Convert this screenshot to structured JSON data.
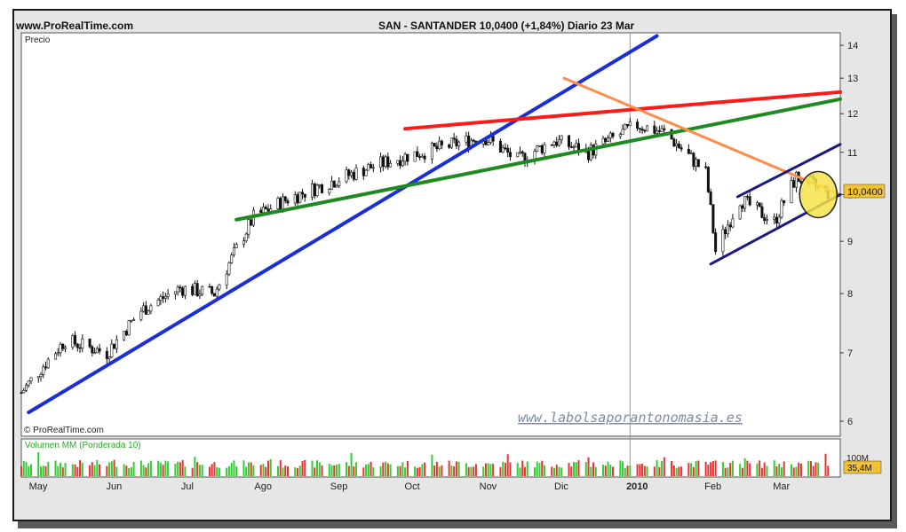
{
  "header": {
    "site": "www.ProRealTime.com",
    "quote": "SAN - SANTANDER    10,0400 (+1,84%)    Diario  23 Mar"
  },
  "price_panel": {
    "label": "Precio",
    "copyright": "© ProRealTime.com",
    "watermark": "www.labolsaporantonomasia.es",
    "last_price_label": "10,0400",
    "y_ticks": [
      "14",
      "13",
      "12",
      "11",
      "10",
      "9",
      "8",
      "7",
      "6"
    ]
  },
  "volume_panel": {
    "label": "Volumen MM (Ponderada 10)",
    "scale_label": "100M",
    "last_volume_label": "35,4M"
  },
  "x_labels": [
    "May",
    "Jun",
    "Jul",
    "Ago",
    "Sep",
    "Oct",
    "Nov",
    "Dic",
    "2010",
    "Feb",
    "Mar"
  ],
  "colors": {
    "candle_up": "#ffffff",
    "candle_down": "#111111",
    "trend_blue": "#1c2fd6",
    "trend_red": "#ff1a1a",
    "trend_green": "#1f8a1f",
    "trend_orange": "#ff8c4a",
    "channel": "#1a1a80",
    "volume_up": "#33cc33",
    "volume_down": "#e63333",
    "highlight": "#f7e34a",
    "watermark": "#7a8aa8"
  },
  "chart_data": {
    "type": "line",
    "title": "SAN - SANTANDER",
    "subtitle": "10,0400 (+1,84%) Diario 23 Mar",
    "xlabel": "",
    "ylabel": "Precio",
    "y_scale": "log",
    "ylim": [
      5.8,
      14.4
    ],
    "x": [
      "2009-04-27",
      "2009-05-15",
      "2009-06-01",
      "2009-06-15",
      "2009-07-01",
      "2009-07-15",
      "2009-07-31",
      "2009-08-14",
      "2009-09-01",
      "2009-09-15",
      "2009-10-01",
      "2009-10-15",
      "2009-11-02",
      "2009-11-16",
      "2009-12-01",
      "2009-12-15",
      "2010-01-04",
      "2010-01-15",
      "2010-02-01",
      "2010-02-05",
      "2010-02-15",
      "2010-03-01",
      "2010-03-10",
      "2010-03-23"
    ],
    "series": [
      {
        "values": [
          6.4,
          7.2,
          7.0,
          7.7,
          8.1,
          8.0,
          9.5,
          9.9,
          10.3,
          10.6,
          10.9,
          11.1,
          11.4,
          10.8,
          11.3,
          11.0,
          11.7,
          11.5,
          10.5,
          8.8,
          9.9,
          9.4,
          10.4,
          10.04
        ]
      }
    ],
    "last_close": 10.04,
    "change_pct": 1.84,
    "volume_scale_label": "100M",
    "last_volume_label": "35,4M"
  }
}
